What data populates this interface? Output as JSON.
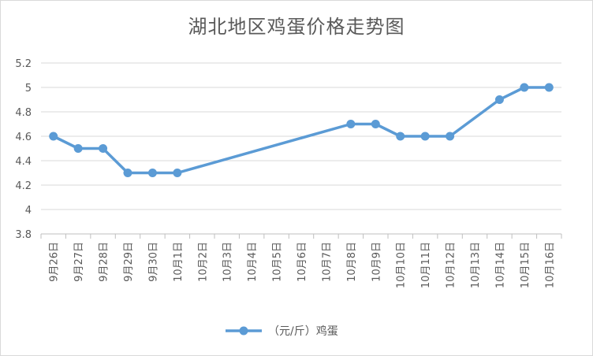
{
  "chart_data": {
    "type": "line",
    "title": "湖北地区鸡蛋价格走势图",
    "categories": [
      "9月26日",
      "9月27日",
      "9月28日",
      "9月29日",
      "9月30日",
      "10月1日",
      "10月2日",
      "10月3日",
      "10月4日",
      "10月5日",
      "10月6日",
      "10月7日",
      "10月8日",
      "10月9日",
      "10月10日",
      "10月11日",
      "10月12日",
      "10月13日",
      "10月14日",
      "10月15日",
      "10月16日"
    ],
    "series": [
      {
        "name": "（元/斤）鸡蛋",
        "color": "#5b9bd5",
        "values": [
          4.6,
          4.5,
          4.5,
          4.3,
          4.3,
          4.3,
          null,
          null,
          null,
          null,
          null,
          null,
          4.7,
          4.7,
          4.6,
          4.6,
          4.6,
          null,
          4.9,
          5.0,
          5.0
        ]
      }
    ],
    "ylim": [
      3.8,
      5.2
    ],
    "yticks": [
      "3.8",
      "4",
      "4.2",
      "4.4",
      "4.6",
      "4.8",
      "5",
      "5.2"
    ],
    "ytick_values": [
      3.8,
      4.0,
      4.2,
      4.4,
      4.6,
      4.8,
      5.0,
      5.2
    ],
    "grid": true,
    "legend_position": "bottom",
    "xlabel": "",
    "ylabel": ""
  }
}
